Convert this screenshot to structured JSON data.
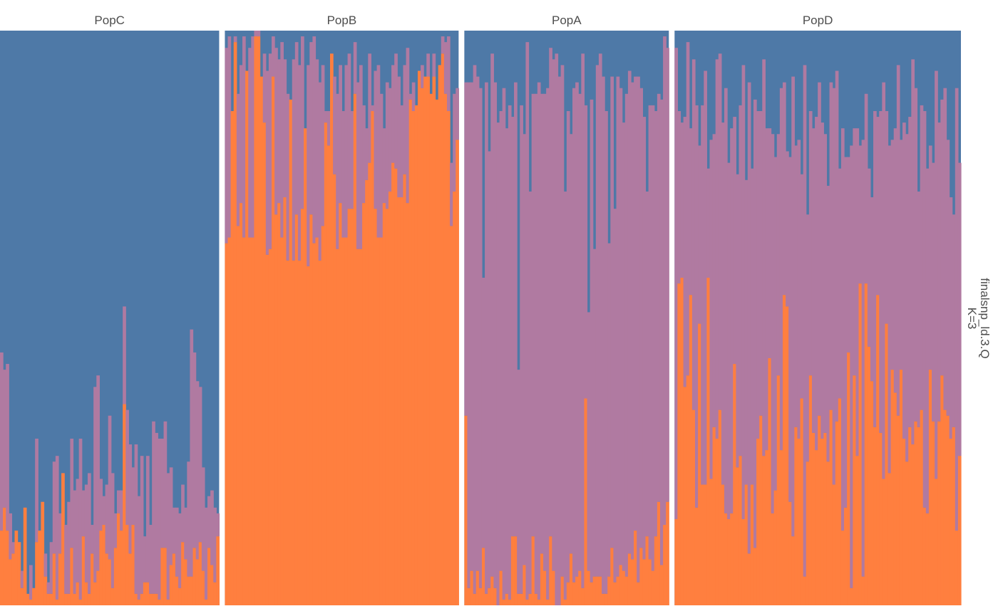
{
  "chart_data": {
    "type": "stacked-bar",
    "plot": "admixture",
    "strip_label": [
      "finalsnp_ld.3.Q",
      "K=3"
    ],
    "clusters": [
      "cluster1",
      "cluster2",
      "cluster3"
    ],
    "colors": {
      "cluster1": "#4e79a7",
      "cluster2": "#b07aa1",
      "cluster3": "#ff7f3f"
    },
    "ylim": [
      0,
      1
    ],
    "populations": [
      {
        "name": "PopC",
        "individuals": 75,
        "anc_top": [
          0.44,
          0.41,
          0.42,
          0.16,
          0.11,
          0.13,
          0.11,
          0.06,
          0.17,
          0.02,
          0.07,
          0.03,
          0.29,
          0.13,
          0.18,
          0.09,
          0.04,
          0.11,
          0.25,
          0.26,
          0.16,
          0.23,
          0.14,
          0.18,
          0.29,
          0.2,
          0.22,
          0.29,
          0.2,
          0.21,
          0.23,
          0.14,
          0.38,
          0.4,
          0.22,
          0.19,
          0.21,
          0.33,
          0.23,
          0.16,
          0.2,
          0.2,
          0.52,
          0.34,
          0.28,
          0.24,
          0.28,
          0.19,
          0.26,
          0.12,
          0.26,
          0.14,
          0.32,
          0.3,
          0.29,
          0.29,
          0.32,
          0.23,
          0.24,
          0.17,
          0.17,
          0.16,
          0.21,
          0.17,
          0.25,
          0.48,
          0.44,
          0.39,
          0.38,
          0.24,
          0.17,
          0.19,
          0.2,
          0.17,
          0.16
        ],
        "cluster3": [
          0.13,
          0.17,
          0.13,
          0.08,
          0.09,
          0.13,
          0.11,
          0.03,
          0.17,
          0.02,
          0.01,
          0.04,
          0.11,
          0.13,
          0.18,
          0.05,
          0.02,
          0.02,
          0.09,
          0.01,
          0.09,
          0.23,
          0.02,
          0.02,
          0.1,
          0.02,
          0.04,
          0.01,
          0.12,
          0.04,
          0.02,
          0.09,
          0.04,
          0.06,
          0.13,
          0.14,
          0.09,
          0.08,
          0.03,
          0.1,
          0.16,
          0.13,
          0.35,
          0.14,
          0.09,
          0.14,
          0.02,
          0.01,
          0.02,
          0.04,
          0.04,
          0.02,
          0.02,
          0.02,
          0.01,
          0.1,
          0.1,
          0.01,
          0.07,
          0.09,
          0.05,
          0.03,
          0.11,
          0.08,
          0.05,
          0.05,
          0.1,
          0.08,
          0.11,
          0.06,
          0.01,
          0.1,
          0.07,
          0.04,
          0.12
        ]
      },
      {
        "name": "PopB",
        "individuals": 80,
        "anc_top": [
          0.97,
          0.99,
          0.86,
          0.99,
          0.89,
          0.94,
          0.99,
          0.93,
          0.97,
          0.99,
          1.0,
          1.0,
          0.92,
          0.96,
          0.93,
          0.96,
          0.99,
          0.97,
          0.95,
          0.98,
          0.95,
          0.89,
          0.88,
          0.95,
          0.98,
          0.94,
          0.99,
          0.83,
          0.94,
          0.98,
          0.99,
          0.95,
          0.91,
          0.94,
          0.86,
          0.86,
          0.96,
          0.92,
          0.89,
          0.94,
          0.86,
          0.94,
          0.96,
          0.86,
          0.98,
          0.91,
          0.94,
          0.87,
          0.83,
          0.96,
          0.87,
          0.93,
          0.94,
          0.89,
          0.83,
          0.91,
          0.9,
          0.94,
          0.96,
          0.92,
          0.87,
          0.94,
          0.97,
          0.89,
          0.91,
          0.87,
          0.93,
          0.94,
          0.92,
          0.96,
          0.89,
          0.96,
          0.88,
          0.94,
          0.99,
          0.98,
          0.99,
          0.77,
          0.89,
          0.9
        ],
        "cluster3": [
          0.63,
          0.64,
          0.96,
          0.98,
          0.66,
          0.7,
          0.64,
          0.95,
          0.64,
          0.64,
          0.99,
          0.99,
          0.98,
          0.84,
          0.61,
          0.62,
          0.92,
          0.68,
          0.7,
          0.64,
          0.71,
          0.6,
          0.98,
          0.6,
          0.68,
          0.6,
          0.69,
          0.84,
          0.59,
          0.68,
          0.63,
          0.64,
          0.6,
          0.66,
          0.84,
          0.8,
          0.99,
          0.75,
          0.62,
          0.7,
          0.64,
          0.64,
          0.69,
          0.69,
          0.89,
          0.62,
          0.62,
          0.7,
          0.74,
          0.77,
          0.86,
          0.69,
          0.64,
          0.64,
          0.7,
          0.69,
          0.72,
          0.77,
          0.76,
          0.71,
          0.71,
          0.75,
          0.7,
          0.88,
          0.86,
          0.98,
          0.98,
          0.9,
          0.94,
          0.92,
          0.92,
          0.92,
          0.95,
          0.94,
          0.96,
          0.89,
          0.86,
          0.66,
          0.72,
          0.81
        ]
      },
      {
        "name": "PopA",
        "individuals": 70,
        "anc_top": [
          0.91,
          0.91,
          0.91,
          0.94,
          0.92,
          0.9,
          0.57,
          0.91,
          0.79,
          0.96,
          0.91,
          0.84,
          0.86,
          0.9,
          0.83,
          0.87,
          0.85,
          0.91,
          0.41,
          0.87,
          0.82,
          0.98,
          0.72,
          0.89,
          0.89,
          0.91,
          0.89,
          0.89,
          0.9,
          0.97,
          0.95,
          0.96,
          0.92,
          0.94,
          0.72,
          0.86,
          0.82,
          0.9,
          0.91,
          0.89,
          0.96,
          0.87,
          0.51,
          0.88,
          0.62,
          0.94,
          0.96,
          0.92,
          0.86,
          0.63,
          0.92,
          0.69,
          0.92,
          0.9,
          0.84,
          0.89,
          0.93,
          0.91,
          0.92,
          0.92,
          0.9,
          0.85,
          0.72,
          0.87,
          0.87,
          0.86,
          0.89,
          0.88,
          0.99,
          0.97
        ],
        "cluster3": [
          0.33,
          0.03,
          0.06,
          0.02,
          0.06,
          0.03,
          0.1,
          0.02,
          0.03,
          0.05,
          0.03,
          0.0,
          0.06,
          0.01,
          0.02,
          0.01,
          0.12,
          0.12,
          0.02,
          0.02,
          0.07,
          0.01,
          0.02,
          0.12,
          0.02,
          0.01,
          0.09,
          0.06,
          0.01,
          0.12,
          0.06,
          0.0,
          0.0,
          0.05,
          0.01,
          0.04,
          0.09,
          0.04,
          0.05,
          0.06,
          0.03,
          0.36,
          0.06,
          0.04,
          0.05,
          0.05,
          0.05,
          0.02,
          0.02,
          0.05,
          0.1,
          0.04,
          0.05,
          0.07,
          0.06,
          0.05,
          0.09,
          0.08,
          0.13,
          0.04,
          0.1,
          0.08,
          0.12,
          0.08,
          0.06,
          0.12,
          0.18,
          0.07,
          0.14,
          0.18
        ]
      },
      {
        "name": "PopD",
        "individuals": 98,
        "anc_top": [
          0.97,
          0.86,
          0.84,
          0.85,
          0.98,
          0.83,
          0.95,
          0.87,
          0.8,
          0.87,
          0.93,
          0.76,
          0.81,
          0.82,
          0.95,
          0.96,
          0.84,
          0.9,
          0.77,
          0.83,
          0.85,
          0.75,
          0.87,
          0.94,
          0.74,
          0.91,
          0.76,
          0.88,
          0.86,
          0.86,
          0.95,
          0.83,
          0.83,
          0.82,
          0.78,
          0.82,
          0.9,
          0.91,
          0.79,
          0.78,
          0.92,
          0.8,
          0.81,
          0.75,
          0.94,
          0.68,
          0.86,
          0.83,
          0.85,
          0.91,
          0.84,
          0.82,
          0.73,
          0.91,
          0.9,
          0.93,
          0.76,
          0.83,
          0.78,
          0.78,
          0.8,
          0.83,
          0.83,
          0.8,
          0.81,
          0.89,
          0.76,
          0.71,
          0.86,
          0.85,
          0.86,
          0.91,
          0.86,
          0.8,
          0.81,
          0.83,
          0.94,
          0.81,
          0.84,
          0.82,
          0.85,
          0.95,
          0.9,
          0.72,
          0.87,
          0.86,
          0.76,
          0.8,
          0.77,
          0.93,
          0.84,
          0.88,
          0.9,
          0.81,
          0.71,
          0.68,
          0.9,
          0.77
        ],
        "cluster3": [
          0.15,
          0.56,
          0.57,
          0.38,
          0.4,
          0.54,
          0.34,
          0.17,
          0.49,
          0.21,
          0.21,
          0.57,
          0.22,
          0.31,
          0.29,
          0.34,
          0.21,
          0.16,
          0.15,
          0.16,
          0.42,
          0.24,
          0.26,
          0.15,
          0.21,
          0.09,
          0.21,
          0.1,
          0.29,
          0.33,
          0.26,
          0.27,
          0.43,
          0.16,
          0.2,
          0.4,
          0.27,
          0.54,
          0.52,
          0.18,
          0.12,
          0.31,
          0.29,
          0.36,
          0.05,
          0.25,
          0.4,
          0.3,
          0.27,
          0.33,
          0.29,
          0.3,
          0.25,
          0.34,
          0.21,
          0.32,
          0.36,
          0.13,
          0.17,
          0.44,
          0.03,
          0.4,
          0.26,
          0.56,
          0.05,
          0.56,
          0.45,
          0.39,
          0.31,
          0.54,
          0.3,
          0.22,
          0.49,
          0.23,
          0.41,
          0.37,
          0.33,
          0.41,
          0.29,
          0.25,
          0.31,
          0.28,
          0.32,
          0.31,
          0.34,
          0.17,
          0.16,
          0.41,
          0.32,
          0.22,
          0.32,
          0.4,
          0.34,
          0.33,
          0.29,
          0.31,
          0.13,
          0.26
        ]
      }
    ]
  }
}
